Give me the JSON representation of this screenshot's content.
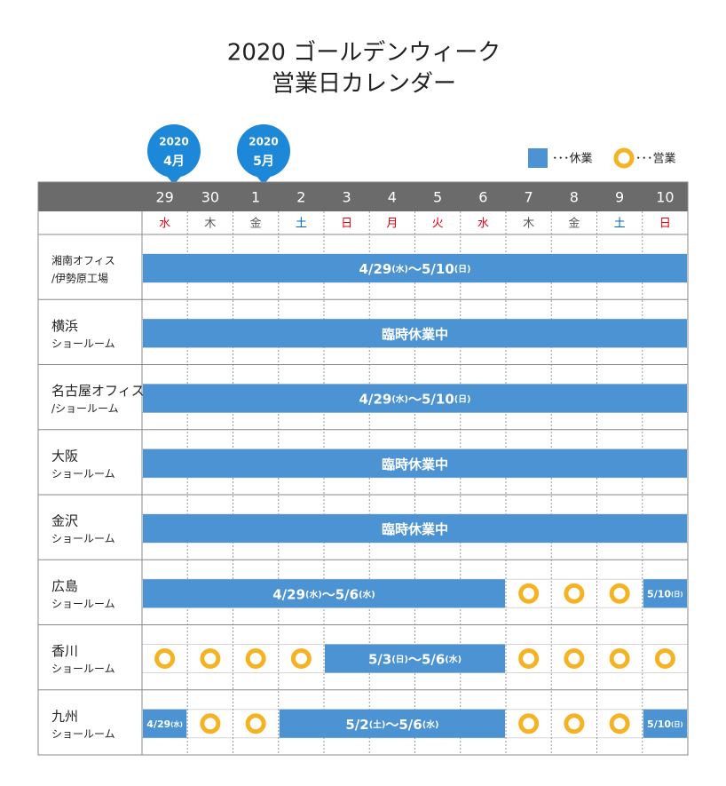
{
  "title": [
    "2020 ゴールデンウィーク",
    "営業日カレンダー"
  ],
  "month_markers": [
    {
      "year": "2020",
      "month": "4月"
    },
    {
      "year": "2020",
      "month": "5月"
    }
  ],
  "legend": {
    "closed": "･･･休業",
    "open": "･･･営業"
  },
  "days": [
    "29",
    "30",
    "1",
    "2",
    "3",
    "4",
    "5",
    "6",
    "7",
    "8",
    "9",
    "10"
  ],
  "weekdays": [
    {
      "label": "水",
      "color": "#e60012"
    },
    {
      "label": "木",
      "color": "#555555"
    },
    {
      "label": "金",
      "color": "#555555"
    },
    {
      "label": "土",
      "color": "#0068b7"
    },
    {
      "label": "日",
      "color": "#e60012"
    },
    {
      "label": "月",
      "color": "#e60012"
    },
    {
      "label": "火",
      "color": "#e60012"
    },
    {
      "label": "水",
      "color": "#e60012"
    },
    {
      "label": "木",
      "color": "#555555"
    },
    {
      "label": "金",
      "color": "#555555"
    },
    {
      "label": "土",
      "color": "#0068b7"
    },
    {
      "label": "日",
      "color": "#e60012"
    }
  ],
  "rows": [
    {
      "name": [
        "湘南オフィス",
        "/伊勢原工場"
      ],
      "cells": [
        {
          "type": "closed",
          "span": 12,
          "label": "4/29(水)～5/10(日)"
        }
      ]
    },
    {
      "name": [
        "横浜",
        "ショールーム"
      ],
      "cells": [
        {
          "type": "closed",
          "span": 12,
          "label": "臨時休業中"
        }
      ]
    },
    {
      "name": [
        "名古屋オフィス",
        "/ショールーム"
      ],
      "cells": [
        {
          "type": "closed",
          "span": 12,
          "label": "4/29(水)～5/10(日)"
        }
      ]
    },
    {
      "name": [
        "大阪",
        "ショールーム"
      ],
      "cells": [
        {
          "type": "closed",
          "span": 12,
          "label": "臨時休業中"
        }
      ]
    },
    {
      "name": [
        "金沢",
        "ショールーム"
      ],
      "cells": [
        {
          "type": "closed",
          "span": 12,
          "label": "臨時休業中"
        }
      ]
    },
    {
      "name": [
        "広島",
        "ショールーム"
      ],
      "cells": [
        {
          "type": "closed",
          "span": 8,
          "label": "4/29(水)～5/6(水)"
        },
        {
          "type": "open"
        },
        {
          "type": "open"
        },
        {
          "type": "open"
        },
        {
          "type": "closed",
          "span": 1,
          "label": "5/10(日)"
        }
      ]
    },
    {
      "name": [
        "香川",
        "ショールーム"
      ],
      "cells": [
        {
          "type": "open"
        },
        {
          "type": "open"
        },
        {
          "type": "open"
        },
        {
          "type": "open"
        },
        {
          "type": "closed",
          "span": 4,
          "label": "5/3(日)～5/6(水)"
        },
        {
          "type": "open"
        },
        {
          "type": "open"
        },
        {
          "type": "open"
        },
        {
          "type": "open"
        }
      ]
    },
    {
      "name": [
        "九州",
        "ショールーム"
      ],
      "cells": [
        {
          "type": "closed",
          "span": 1,
          "label": "4/29(水)"
        },
        {
          "type": "open"
        },
        {
          "type": "open"
        },
        {
          "type": "closed",
          "span": 5,
          "label": "5/2(土)～5/6(水)"
        },
        {
          "type": "open"
        },
        {
          "type": "open"
        },
        {
          "type": "open"
        },
        {
          "type": "closed",
          "span": 1,
          "label": "5/10(日)"
        }
      ]
    }
  ]
}
